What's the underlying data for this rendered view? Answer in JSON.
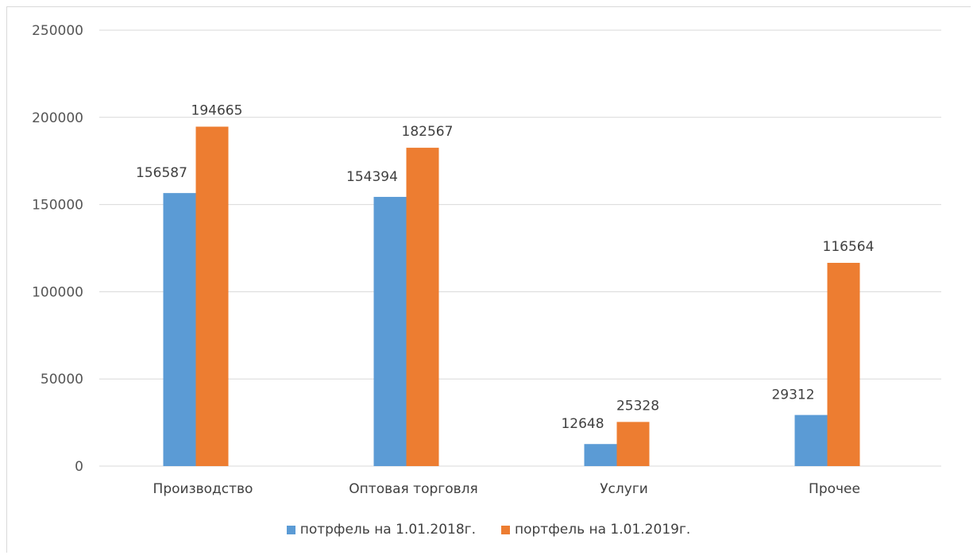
{
  "chart_data": {
    "type": "bar",
    "categories": [
      "Производство",
      "Оптовая торговля",
      "Услуги",
      "Прочее"
    ],
    "series": [
      {
        "name": "потрфель на 1.01.2018г.",
        "values": [
          156587,
          154394,
          12648,
          29312
        ],
        "color": "#5b9bd5"
      },
      {
        "name": "портфель на 1.01.2019г.",
        "values": [
          194665,
          182567,
          25328,
          116564
        ],
        "color": "#ed7d31"
      }
    ],
    "ylim": [
      0,
      250000
    ],
    "yticks": [
      "0",
      "50000",
      "100000",
      "150000",
      "200000",
      "250000"
    ],
    "grid": true,
    "legend": "bottom"
  }
}
